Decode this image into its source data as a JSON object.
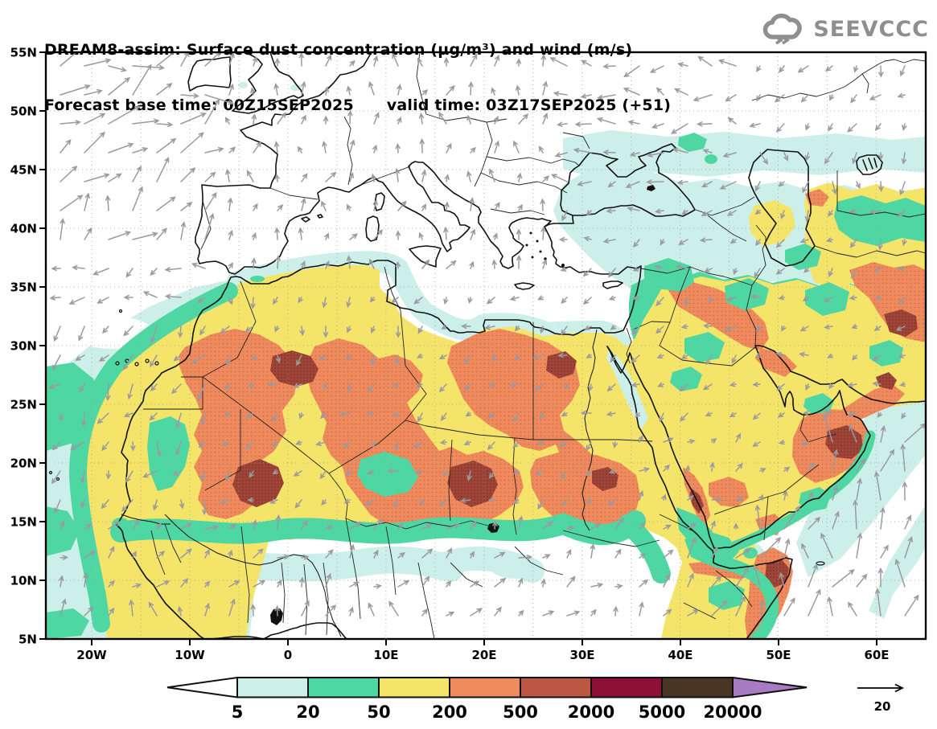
{
  "header": {
    "title_line1": "DREAM8-assim: Surface dust concentration (µg/m³) and wind (m/s)",
    "title_line2": "Forecast base time: 00Z15SEP2025      valid time: 03Z17SEP2025 (+51)"
  },
  "logo": {
    "text": "SEEVCCC"
  },
  "axes": {
    "lat_labels": [
      "55N",
      "50N",
      "45N",
      "40N",
      "35N",
      "30N",
      "25N",
      "20N",
      "15N",
      "10N",
      "5N"
    ],
    "lon_labels": [
      "20W",
      "10W",
      "0",
      "10E",
      "20E",
      "30E",
      "40E",
      "50E",
      "60E"
    ]
  },
  "colorbar": {
    "values": [
      "5",
      "20",
      "50",
      "200",
      "500",
      "2000",
      "5000",
      "20000"
    ],
    "colors": [
      "#ffffff",
      "#cdefe9",
      "#4fd7a3",
      "#f4e469",
      "#ef8a5c",
      "#bb5742",
      "#8d1037",
      "#4a3424",
      "#a77cc2"
    ]
  },
  "wind_reference": {
    "label": "20"
  },
  "palette": {
    "pale": "#cdefe9",
    "green": "#4fd7a3",
    "yellow": "#f4e469",
    "salmon": "#ef8a5c",
    "salmon_dot": "#c9684a",
    "dark": "#9e4537",
    "dark_dot": "#7c3228",
    "white": "#ffffff",
    "coast": "#111111",
    "border": "#222222",
    "arrow": "#9a9aa0",
    "grid": "#9a9aa0",
    "logo_gray": "#8f8f8f"
  },
  "chart_data": {
    "type": "heatmap",
    "title": "DREAM8-assim: Surface dust concentration (µg/m³) and wind (m/s)",
    "subtitle": "Forecast base time: 00Z15SEP2025  valid time: 03Z17SEP2025 (+51)",
    "units": "µg/m³",
    "legend_levels": [
      5,
      20,
      50,
      200,
      500,
      2000,
      5000,
      20000
    ],
    "legend_colors": [
      "#ffffff",
      "#cdefe9",
      "#4fd7a3",
      "#f4e469",
      "#ef8a5c",
      "#bb5742",
      "#8d1037",
      "#4a3424",
      "#a77cc2"
    ],
    "wind_reference_ms": 20,
    "lon_range": [
      -24.7,
      65.1
    ],
    "lat_range": [
      5,
      55
    ],
    "grid_deg": 5,
    "notes": "Dust 50-500 µg/m³ blankets the Sahara belt (15N-33N) and Arabian Peninsula; 500-2000 µg/m³ cores over W Sahara/Algeria, Mali, Niger-Chad, Libya-Egypt, N Sudan, N Arabia, Oman, NE Iran and Somalia; >2000 µg/m³ spots over Mali, S Algeria, Niger, Egypt, Eritrea coast, Oman and Somalia; 5-50 µg/m³ fringes over the E Atlantic, Sahel, Mediterranean coast, Ukraine-Caspian band, Middle East and NW Indian Ocean; strong SW-NE winds over NE Atlantic and monsoon flow over the Arabian Sea."
  }
}
